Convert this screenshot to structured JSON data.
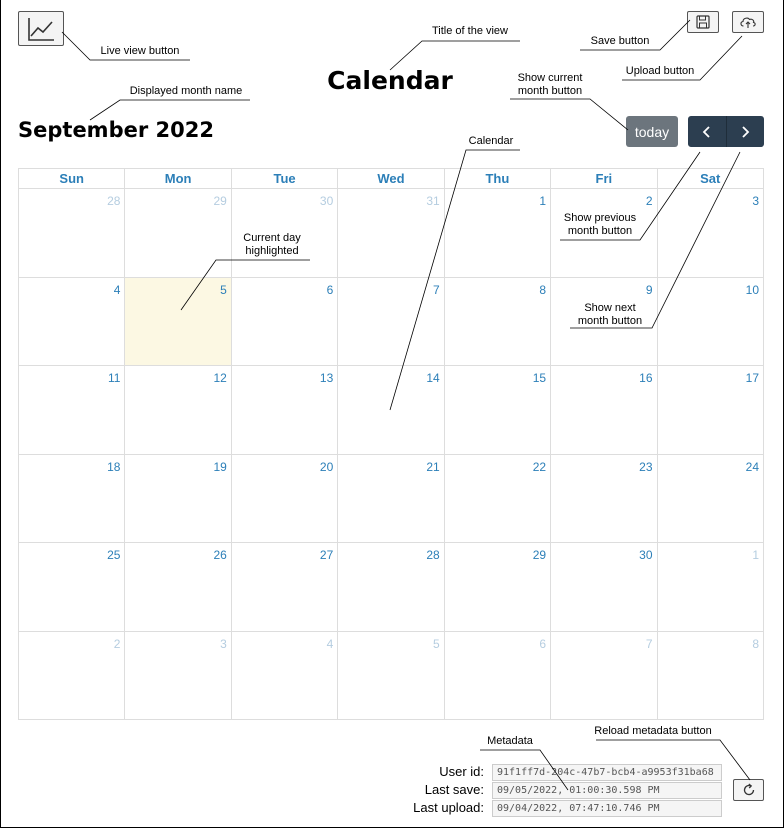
{
  "view": {
    "title": "Calendar"
  },
  "calendar": {
    "month_label": "September 2022",
    "today_label": "today",
    "weekdays": [
      "Sun",
      "Mon",
      "Tue",
      "Wed",
      "Thu",
      "Fri",
      "Sat"
    ],
    "weeks": [
      [
        "28",
        "29",
        "30",
        "31",
        "1",
        "2",
        "3"
      ],
      [
        "4",
        "5",
        "6",
        "7",
        "8",
        "9",
        "10"
      ],
      [
        "11",
        "12",
        "13",
        "14",
        "15",
        "16",
        "17"
      ],
      [
        "18",
        "19",
        "20",
        "21",
        "22",
        "23",
        "24"
      ],
      [
        "25",
        "26",
        "27",
        "28",
        "29",
        "30",
        "1"
      ],
      [
        "2",
        "3",
        "4",
        "5",
        "6",
        "7",
        "8"
      ]
    ],
    "other_month_mask": [
      [
        true,
        true,
        true,
        true,
        false,
        false,
        false
      ],
      [
        false,
        false,
        false,
        false,
        false,
        false,
        false
      ],
      [
        false,
        false,
        false,
        false,
        false,
        false,
        false
      ],
      [
        false,
        false,
        false,
        false,
        false,
        false,
        false
      ],
      [
        false,
        false,
        false,
        false,
        false,
        false,
        true
      ],
      [
        true,
        true,
        true,
        true,
        true,
        true,
        true
      ]
    ],
    "today_cell": [
      1,
      1
    ]
  },
  "metadata": {
    "user_id_label": "User id:",
    "user_id": "91f1ff7d-204c-47b7-bcb4-a9953f31ba68",
    "last_save_label": "Last save:",
    "last_save": "09/05/2022, 01:00:30.598 PM",
    "last_upload_label": "Last upload:",
    "last_upload": "09/04/2022, 07:47:10.746 PM"
  },
  "annotations": {
    "live_view": "Live view button",
    "title_view": "Title of the view",
    "save": "Save button",
    "upload": "Upload button",
    "month_name": "Displayed month name",
    "show_current": "Show current month button",
    "calendar": "Calendar",
    "show_prev": "Show previous month button",
    "current_day": "Current day highlighted",
    "show_next": "Show next month button",
    "metadata": "Metadata",
    "reload": "Reload metadata button"
  },
  "icons": {
    "live_view": "line-chart-icon",
    "save": "floppy-disk-icon",
    "upload": "cloud-upload-icon",
    "prev": "chevron-left-icon",
    "next": "chevron-right-icon",
    "reload": "refresh-icon"
  },
  "colors": {
    "day_number": "#2c7fb8",
    "other_month_day": "#b5cde0",
    "today_bg": "#fcf8e3",
    "today_btn": "#6c757d",
    "nav_btn": "#2c3e50"
  }
}
